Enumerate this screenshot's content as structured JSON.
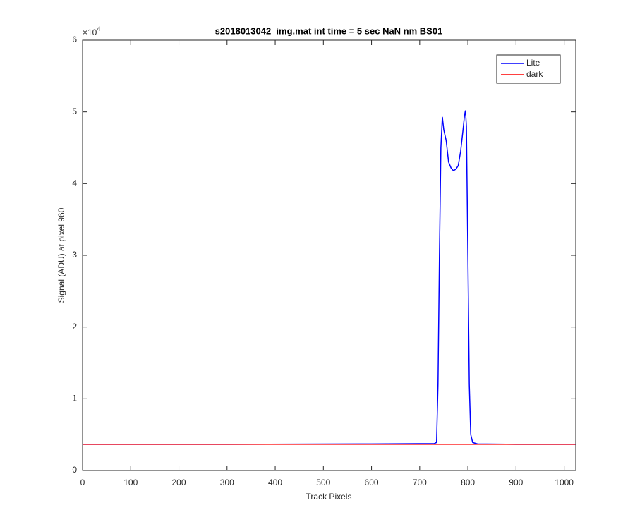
{
  "chart_data": {
    "type": "line",
    "title": "s2018013042_img.mat int time = 5 sec  NaN nm BS01",
    "xlabel": "Track Pixels",
    "ylabel": "Signal (ADU) at pixel 960",
    "y_multiplier": {
      "base": "×10",
      "exponent": "4"
    },
    "xlim": [
      0,
      1024
    ],
    "ylim": [
      0,
      60000
    ],
    "xticks": [
      0,
      100,
      200,
      300,
      400,
      500,
      600,
      700,
      800,
      900,
      1000
    ],
    "yticks": [
      {
        "value": 0,
        "label": "0"
      },
      {
        "value": 10000,
        "label": "1"
      },
      {
        "value": 20000,
        "label": "2"
      },
      {
        "value": 30000,
        "label": "3"
      },
      {
        "value": 40000,
        "label": "4"
      },
      {
        "value": 50000,
        "label": "5"
      },
      {
        "value": 60000,
        "label": "6"
      }
    ],
    "legend": "top-right",
    "series": [
      {
        "name": "Lite",
        "color": "#0000ff",
        "x": [
          0,
          300,
          600,
          730,
          735,
          738,
          741,
          744,
          747,
          750,
          755,
          760,
          765,
          770,
          775,
          780,
          785,
          790,
          793,
          795,
          797,
          800,
          803,
          806,
          810,
          820,
          900,
          1023
        ],
        "values": [
          3650,
          3650,
          3700,
          3750,
          3900,
          12000,
          30000,
          45000,
          49300,
          47500,
          46000,
          43000,
          42200,
          41800,
          42000,
          42500,
          44500,
          47500,
          49500,
          50200,
          48000,
          30000,
          12000,
          5000,
          3900,
          3700,
          3650,
          3650
        ]
      },
      {
        "name": "dark",
        "color": "#ff0000",
        "x": [
          0,
          1023
        ],
        "values": [
          3650,
          3650
        ]
      }
    ]
  }
}
